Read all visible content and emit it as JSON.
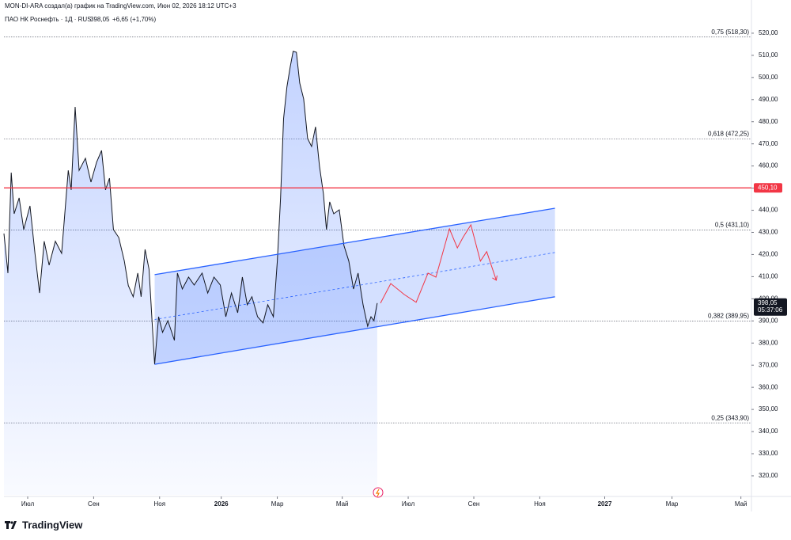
{
  "chart_data": {
    "type": "line",
    "title": "MON-DI-ARA создал(а) график на TradingView.com, Июн 02, 2026 18:12 UTC+3",
    "subtitle": "ПАО НК Роснефть · 1Д · RUS",
    "price": "398,05",
    "change": "+6,65 (+1,70%)",
    "brand": "TradingView",
    "xlim": [
      -0.72,
      21.95
    ],
    "ylim": [
      311.4,
      535
    ],
    "xticks": [
      {
        "value": 0,
        "label": "Июл"
      },
      {
        "value": 2,
        "label": "Сен"
      },
      {
        "value": 4,
        "label": "Ноя"
      },
      {
        "value": 5.87,
        "label": "2026"
      },
      {
        "value": 7.57,
        "label": "Мар"
      },
      {
        "value": 9.54,
        "label": "Май"
      },
      {
        "value": 11.54,
        "label": "Июл"
      },
      {
        "value": 13.53,
        "label": "Сен"
      },
      {
        "value": 15.53,
        "label": "Ноя"
      },
      {
        "value": 17.5,
        "label": "2027"
      },
      {
        "value": 19.54,
        "label": "Мар"
      },
      {
        "value": 21.63,
        "label": "Май"
      }
    ],
    "yticks": [
      {
        "value": 320,
        "label": "320,00"
      },
      {
        "value": 330,
        "label": "330,00"
      },
      {
        "value": 340,
        "label": "340,00"
      },
      {
        "value": 350,
        "label": "350,00"
      },
      {
        "value": 360,
        "label": "360,00"
      },
      {
        "value": 370,
        "label": "370,00"
      },
      {
        "value": 380,
        "label": "380,00"
      },
      {
        "value": 390,
        "label": "390,00"
      },
      {
        "value": 400,
        "label": "400,00"
      },
      {
        "value": 410,
        "label": "410,00"
      },
      {
        "value": 420,
        "label": "420,00"
      },
      {
        "value": 430,
        "label": "430,00"
      },
      {
        "value": 440,
        "label": "440,00"
      },
      {
        "value": 450,
        "label": "450,00"
      },
      {
        "value": 460,
        "label": "460,00"
      },
      {
        "value": 470,
        "label": "470,00"
      },
      {
        "value": 480,
        "label": "480,00"
      },
      {
        "value": 490,
        "label": "490,00"
      },
      {
        "value": 500,
        "label": "500,00"
      },
      {
        "value": 510,
        "label": "510,00"
      },
      {
        "value": 520,
        "label": "520,00"
      }
    ],
    "series": [
      {
        "color": "#131722",
        "x": [
          -0.72,
          -0.6,
          -0.5,
          -0.41,
          -0.26,
          -0.12,
          0.07,
          0.22,
          0.36,
          0.5,
          0.65,
          0.84,
          1.03,
          1.23,
          1.32,
          1.44,
          1.56,
          1.75,
          1.92,
          2.09,
          2.24,
          2.36,
          2.48,
          2.6,
          2.76,
          2.93,
          3.05,
          3.2,
          3.34,
          3.44,
          3.56,
          3.68,
          3.77,
          3.85,
          3.97,
          4.09,
          4.25,
          4.45,
          4.54,
          4.69,
          4.88,
          5.05,
          5.29,
          5.46,
          5.65,
          5.84,
          6.01,
          6.18,
          6.37,
          6.51,
          6.66,
          6.8,
          6.97,
          7.14,
          7.28,
          7.45,
          7.57,
          7.67,
          7.76,
          7.86,
          7.96,
          8.05,
          8.15,
          8.25,
          8.37,
          8.49,
          8.61,
          8.73,
          8.85,
          8.97,
          9.06,
          9.16,
          9.28,
          9.45,
          9.59,
          9.74,
          9.88,
          10.02,
          10.17,
          10.31,
          10.41,
          10.5,
          10.6
        ],
        "values": [
          429.5,
          411.6,
          457,
          438.4,
          445.6,
          431.3,
          442,
          420.5,
          402.6,
          426,
          415.2,
          426,
          420.5,
          458,
          449.2,
          486.7,
          458,
          463.5,
          452.7,
          461.7,
          467,
          449.2,
          454.5,
          431.3,
          427.7,
          417,
          406,
          400.9,
          411.6,
          400.9,
          422.3,
          413.4,
          390.1,
          370.4,
          391.9,
          384.8,
          390.1,
          381.2,
          411.6,
          404.4,
          409.8,
          406.2,
          411.6,
          402.6,
          409.8,
          406.2,
          391.9,
          402.6,
          393.7,
          409.8,
          397.3,
          400.9,
          391.9,
          389.1,
          397.3,
          391.9,
          417,
          445.6,
          481.4,
          495.7,
          504.6,
          511.8,
          511.4,
          497.5,
          490.3,
          472.4,
          468.8,
          477.7,
          459.9,
          447.4,
          431.3,
          443.8,
          438.4,
          440.2,
          424.1,
          417,
          404.4,
          411.6,
          397.3,
          387.6,
          391.9,
          390.1,
          398.05
        ]
      }
    ],
    "projection": {
      "color": "#f23645",
      "x": [
        10.7,
        11.01,
        11.42,
        11.78,
        12.14,
        12.38,
        12.79,
        13.03,
        13.2,
        13.44,
        13.73,
        13.92,
        14.21
      ],
      "values": [
        398.0,
        406.9,
        401.9,
        398.4,
        411.6,
        409.8,
        431.6,
        423.0,
        427.7,
        433.4,
        417.0,
        421.3,
        408.4
      ]
    },
    "channel": {
      "color": "#2962ff",
      "upper": {
        "x": [
          3.85,
          15.99
        ],
        "values": [
          410.9,
          440.9
        ]
      },
      "middle": {
        "x": [
          3.85,
          15.99
        ],
        "values": [
          390.65,
          420.9
        ]
      },
      "lower": {
        "x": [
          3.85,
          15.99
        ],
        "values": [
          370.4,
          400.9
        ]
      }
    },
    "levels": [
      {
        "value": 518.3,
        "label": "0,75 (518,30)"
      },
      {
        "value": 472.25,
        "label": "0,618 (472,25)"
      },
      {
        "value": 431.1,
        "label": "0,5 (431,10)"
      },
      {
        "value": 389.95,
        "label": "0,382 (389,95)"
      },
      {
        "value": 343.9,
        "label": "0,25 (343,90)"
      }
    ],
    "horizontal_line": {
      "value": 450.1,
      "label": "450,10",
      "color": "#f23645"
    },
    "last_price": {
      "value": 398.05,
      "label": "398,05"
    },
    "countdown": "05:37:06"
  }
}
